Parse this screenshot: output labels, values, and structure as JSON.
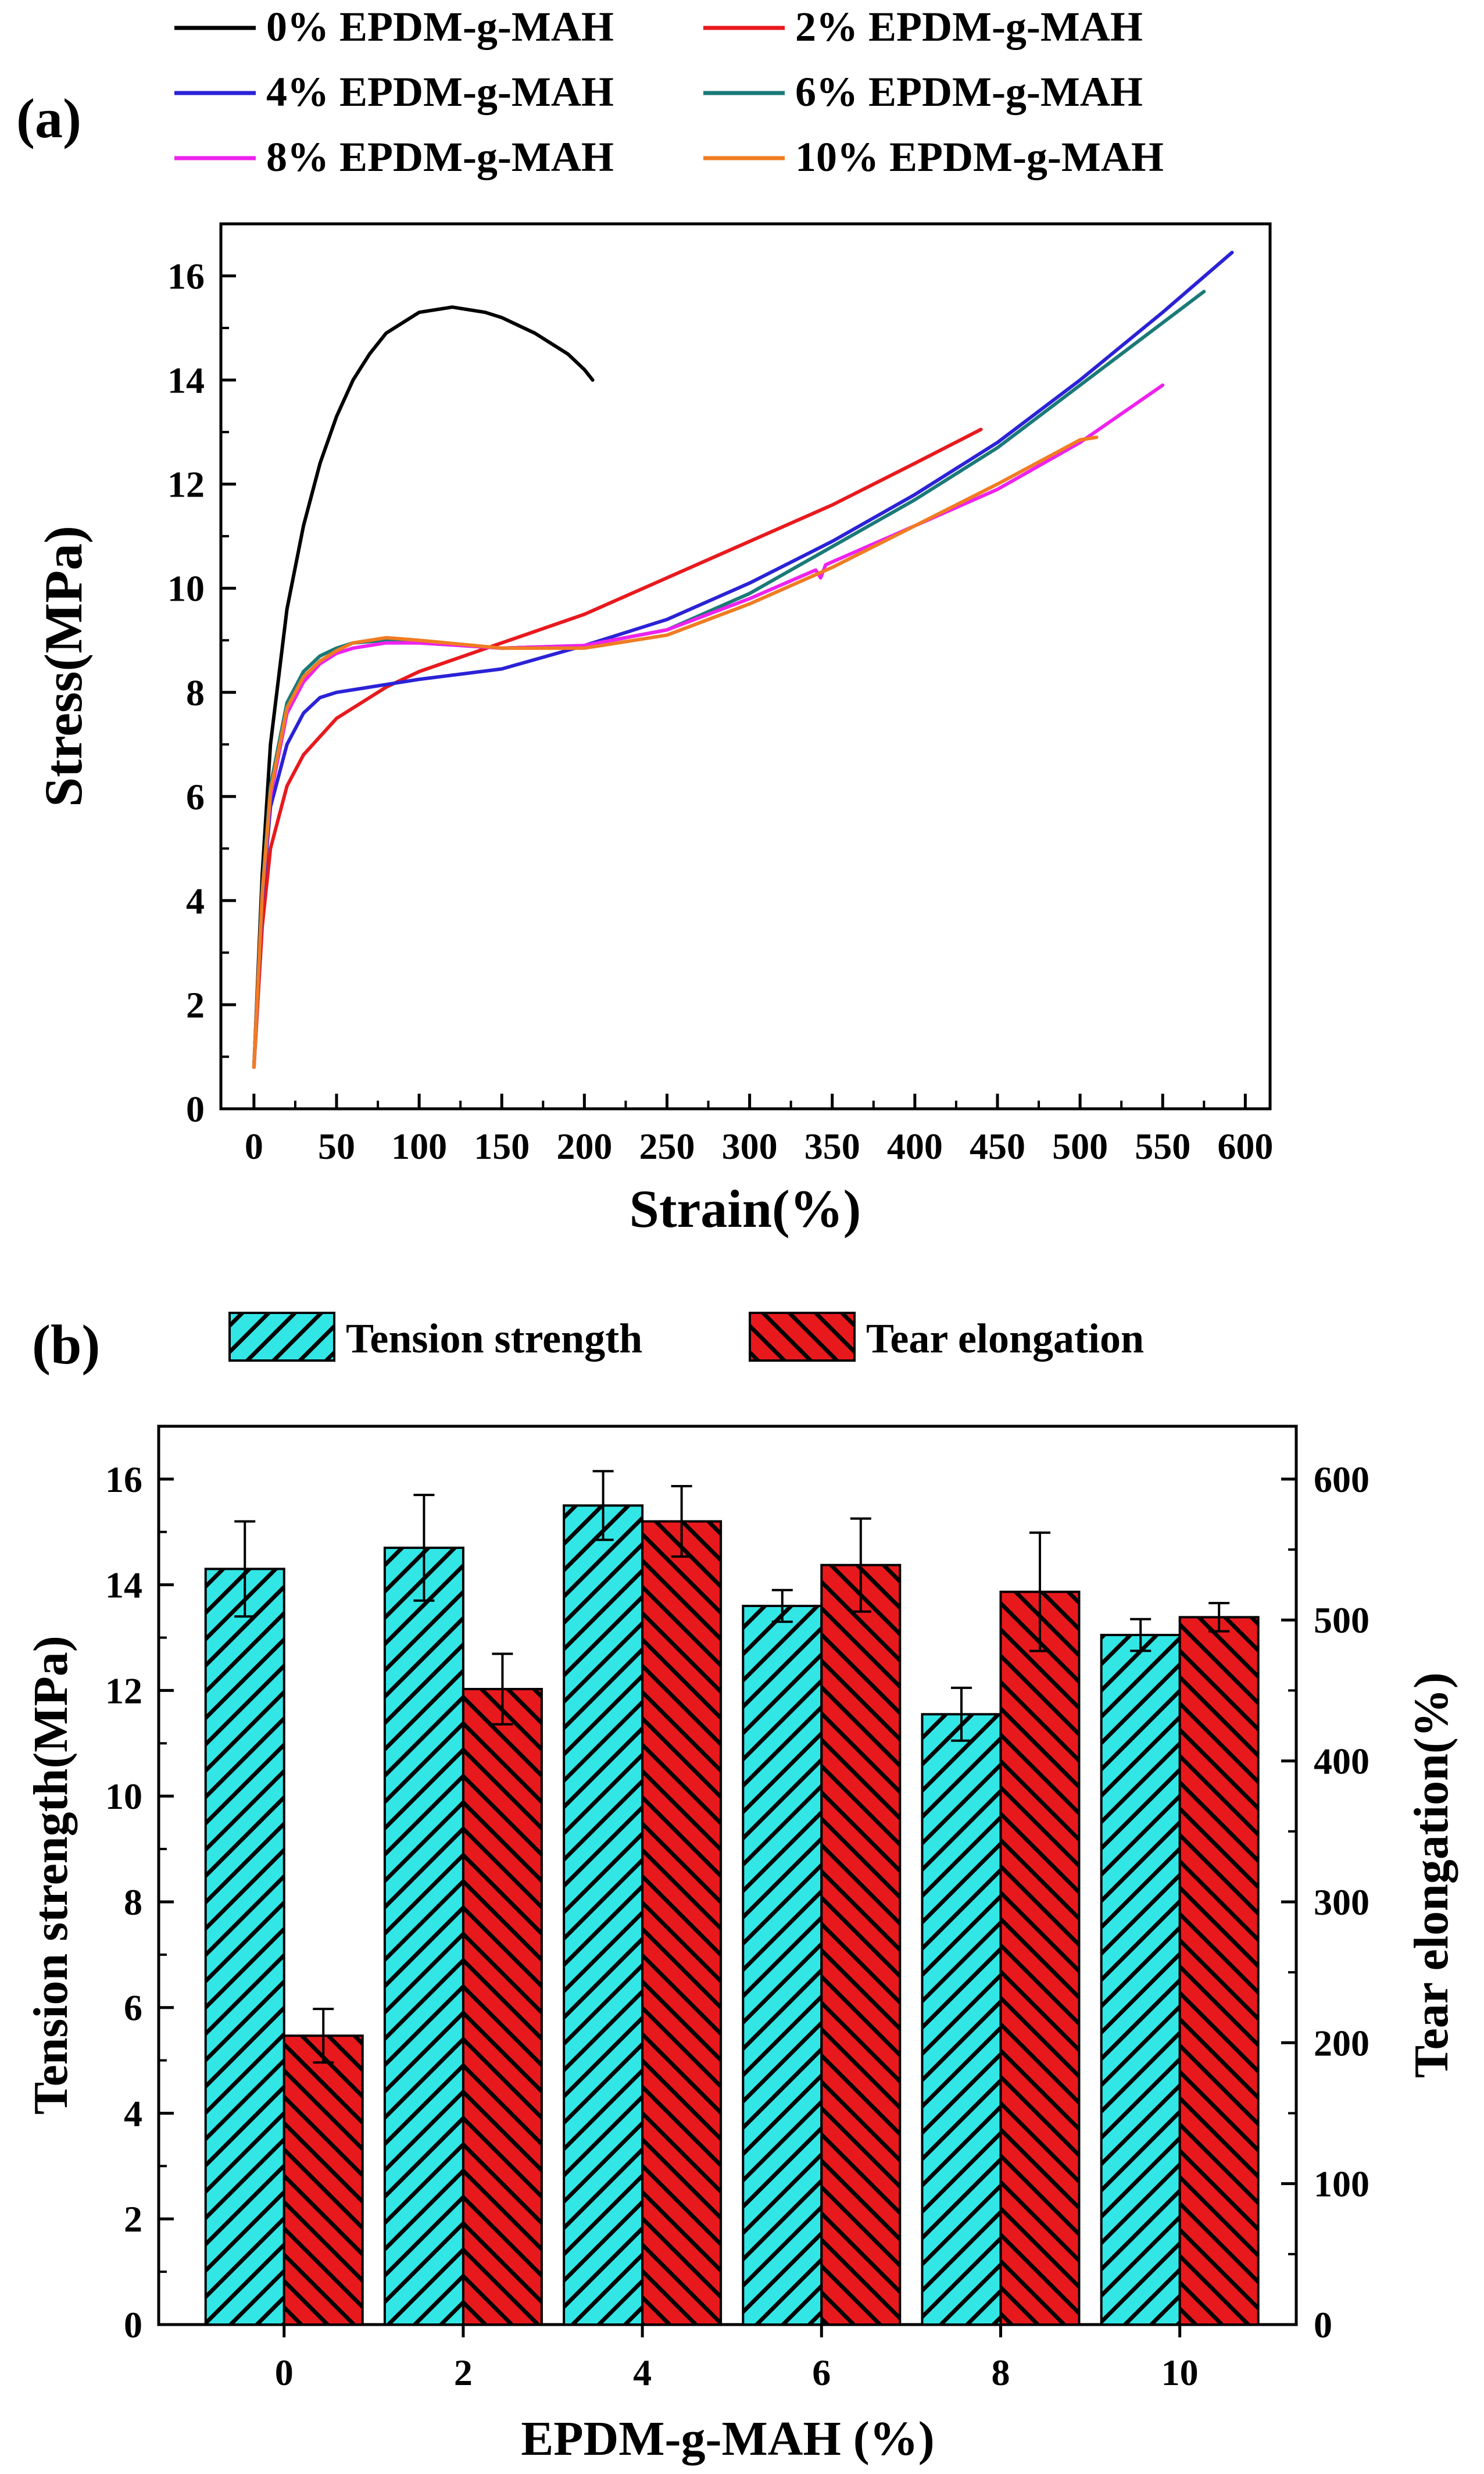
{
  "chart_data": [
    {
      "panel_label": "(a)",
      "type": "line",
      "xlabel": "Strain(%)",
      "ylabel": "Stress(MPa)",
      "xlim": [
        -20,
        615
      ],
      "ylim": [
        0,
        17
      ],
      "xticks": [
        "0",
        "50",
        "100",
        "150",
        "200",
        "250",
        "300",
        "350",
        "400",
        "450",
        "500",
        "550",
        "600"
      ],
      "yticks": [
        "0",
        "2",
        "4",
        "6",
        "8",
        "10",
        "12",
        "14",
        "16"
      ],
      "legend_position": "top",
      "series": [
        {
          "name": "0% EPDM-g-MAH",
          "color": "#000000",
          "x": [
            0,
            5,
            10,
            20,
            30,
            40,
            50,
            60,
            70,
            80,
            90,
            100,
            110,
            120,
            130,
            140,
            150,
            160,
            170,
            180,
            190,
            200,
            205
          ],
          "y": [
            0.8,
            4.5,
            7.0,
            9.6,
            11.2,
            12.4,
            13.3,
            14.0,
            14.5,
            14.9,
            15.1,
            15.3,
            15.35,
            15.4,
            15.35,
            15.3,
            15.2,
            15.05,
            14.9,
            14.7,
            14.5,
            14.2,
            14.0
          ]
        },
        {
          "name": "2% EPDM-g-MAH",
          "color": "#e8191d",
          "x": [
            0,
            5,
            10,
            20,
            30,
            50,
            80,
            100,
            150,
            200,
            250,
            300,
            350,
            400,
            440
          ],
          "y": [
            0.8,
            3.5,
            5.0,
            6.2,
            6.8,
            7.5,
            8.1,
            8.4,
            8.95,
            9.5,
            10.2,
            10.9,
            11.6,
            12.4,
            13.05
          ]
        },
        {
          "name": "4% EPDM-g-MAH",
          "color": "#2b22d6",
          "x": [
            0,
            5,
            10,
            20,
            30,
            40,
            50,
            80,
            100,
            150,
            200,
            250,
            300,
            350,
            400,
            450,
            500,
            550,
            592
          ],
          "y": [
            0.8,
            4.0,
            5.8,
            7.0,
            7.6,
            7.9,
            8.0,
            8.15,
            8.25,
            8.45,
            8.9,
            9.4,
            10.1,
            10.9,
            11.8,
            12.8,
            14.0,
            15.3,
            16.45
          ]
        },
        {
          "name": "6% EPDM-g-MAH",
          "color": "#1a7a78",
          "x": [
            0,
            5,
            10,
            20,
            30,
            40,
            50,
            60,
            80,
            100,
            150,
            200,
            250,
            300,
            350,
            400,
            450,
            500,
            550,
            575
          ],
          "y": [
            0.8,
            4.2,
            6.2,
            7.8,
            8.4,
            8.7,
            8.85,
            8.95,
            9.0,
            8.95,
            8.85,
            8.9,
            9.2,
            9.9,
            10.8,
            11.7,
            12.7,
            13.9,
            15.1,
            15.7
          ]
        },
        {
          "name": "8% EPDM-g-MAH",
          "color": "#ee22ee",
          "x": [
            0,
            5,
            10,
            20,
            30,
            40,
            50,
            60,
            80,
            100,
            150,
            200,
            250,
            300,
            340,
            343,
            346,
            400,
            450,
            500,
            550
          ],
          "y": [
            0.8,
            4.1,
            6.0,
            7.6,
            8.2,
            8.55,
            8.75,
            8.85,
            8.95,
            8.95,
            8.85,
            8.9,
            9.2,
            9.8,
            10.35,
            10.2,
            10.45,
            11.2,
            11.9,
            12.8,
            13.9
          ]
        },
        {
          "name": "10% EPDM-g-MAH",
          "color": "#f07c22",
          "x": [
            0,
            5,
            10,
            20,
            30,
            40,
            50,
            60,
            80,
            100,
            150,
            200,
            250,
            300,
            350,
            400,
            450,
            500,
            510
          ],
          "y": [
            0.8,
            4.1,
            6.1,
            7.7,
            8.3,
            8.6,
            8.8,
            8.95,
            9.05,
            9.0,
            8.85,
            8.85,
            9.1,
            9.7,
            10.4,
            11.2,
            12.0,
            12.85,
            12.9
          ]
        }
      ]
    },
    {
      "panel_label": "(b)",
      "type": "bar",
      "xlabel": "EPDM-g-MAH (%)",
      "ylabel": "Tension strength(MPa)",
      "ylabel_right": "Tear elongation(%)",
      "categories": [
        "0",
        "2",
        "4",
        "6",
        "8",
        "10"
      ],
      "ylim": [
        0,
        17
      ],
      "ylim_right": [
        0,
        637.5
      ],
      "yticks": [
        "0",
        "2",
        "4",
        "6",
        "8",
        "10",
        "12",
        "14",
        "16"
      ],
      "yticks_right": [
        "0",
        "100",
        "200",
        "300",
        "400",
        "500",
        "600"
      ],
      "legend_position": "top",
      "series": [
        {
          "name": "Tension strength",
          "axis": "left",
          "color": "#33e6e6",
          "values": [
            14.3,
            14.7,
            15.5,
            13.6,
            11.55,
            13.05
          ],
          "errors": [
            0.9,
            1.0,
            0.65,
            0.3,
            0.5,
            0.3
          ]
        },
        {
          "name": "Tear elongation",
          "axis": "right",
          "color": "#e8191d",
          "values": [
            205,
            451,
            570,
            539,
            520,
            502
          ],
          "errors": [
            19,
            25,
            25,
            33,
            42,
            10
          ]
        }
      ]
    }
  ]
}
